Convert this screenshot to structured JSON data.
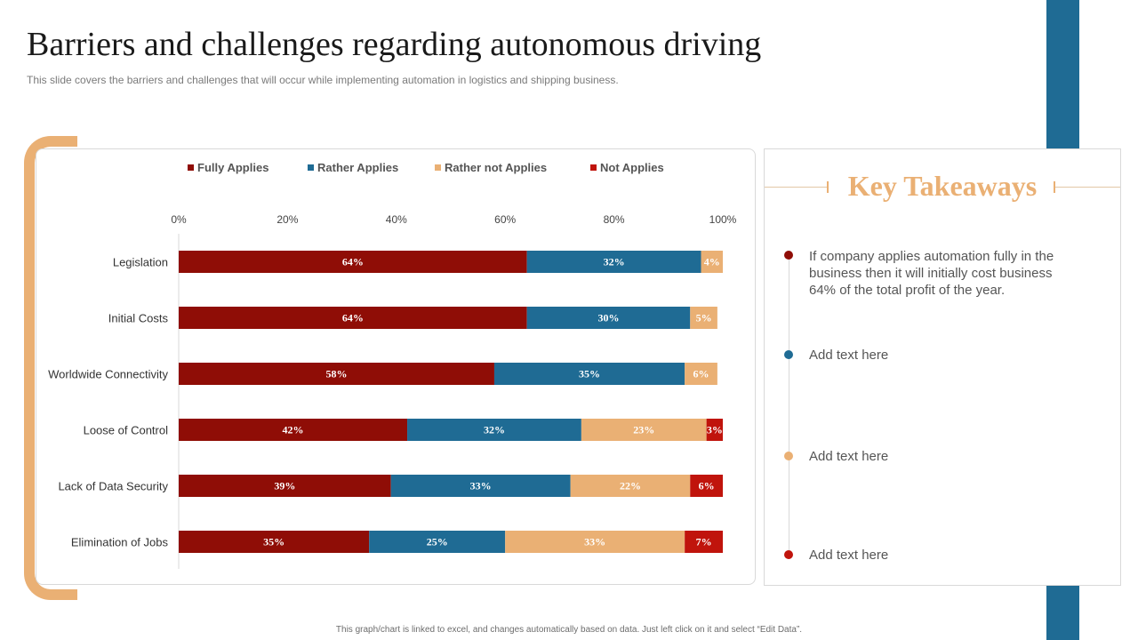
{
  "page": {
    "title": "Barriers and challenges regarding autonomous driving",
    "subtitle": "This slide covers the barriers and challenges that will occur while implementing automation in logistics and shipping business.",
    "footer": "This graph/chart is linked to excel, and changes automatically based on data. Just left click on it and select “Edit Data”."
  },
  "colors": {
    "accent_blue": "#1f6b94",
    "accent_orange": "#eab074"
  },
  "chart_data": {
    "type": "bar",
    "orientation": "horizontal",
    "stacked": true,
    "title": "",
    "xlabel": "",
    "ylabel": "",
    "xlim": [
      0,
      100
    ],
    "x_ticks": [
      "0%",
      "20%",
      "40%",
      "60%",
      "80%",
      "100%"
    ],
    "legend_position": "top",
    "categories": [
      "Legislation",
      "Initial Costs",
      "Worldwide Connectivity",
      "Loose of Control",
      "Lack of Data Security",
      "Elimination of Jobs"
    ],
    "series": [
      {
        "name": "Fully Applies",
        "color": "#8f0d06",
        "values": [
          64,
          64,
          58,
          42,
          39,
          35
        ]
      },
      {
        "name": "Rather Applies",
        "color": "#1f6b94",
        "values": [
          32,
          30,
          35,
          32,
          33,
          25
        ]
      },
      {
        "name": "Rather not Applies",
        "color": "#eab074",
        "values": [
          4,
          5,
          6,
          23,
          22,
          33
        ]
      },
      {
        "name": "Not Applies",
        "color": "#c0140c",
        "values": [
          0,
          0,
          0,
          3,
          6,
          7
        ]
      }
    ]
  },
  "takeaways": {
    "heading": "Key Takeaways",
    "items": [
      {
        "text": "If company applies automation fully in the business then it will initially cost business 64% of the total profit of the year.",
        "color": "#8f0d06"
      },
      {
        "text": "Add text here",
        "color": "#1f6b94"
      },
      {
        "text": "Add text here",
        "color": "#eab074"
      },
      {
        "text": "Add text here",
        "color": "#c0140c"
      }
    ]
  }
}
